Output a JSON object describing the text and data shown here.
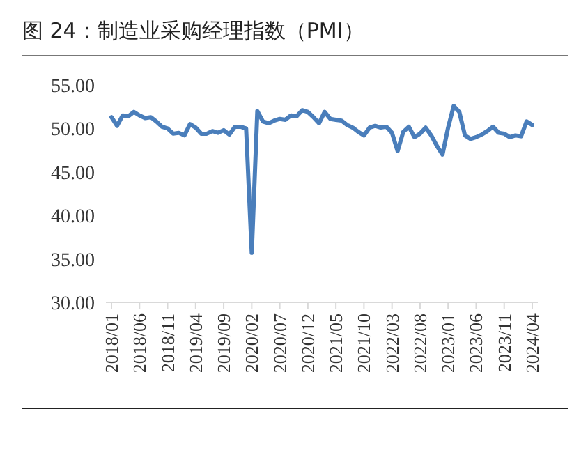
{
  "chart_data": {
    "type": "line",
    "title": "图 24：制造业采购经理指数（PMI）",
    "categories": [
      "2018/01",
      null,
      null,
      null,
      null,
      "2018/06",
      null,
      null,
      null,
      null,
      "2018/11",
      null,
      null,
      null,
      null,
      "2019/04",
      null,
      null,
      null,
      null,
      "2019/09",
      null,
      null,
      null,
      null,
      "2020/02",
      null,
      null,
      null,
      null,
      "2020/07",
      null,
      null,
      null,
      null,
      "2020/12",
      null,
      null,
      null,
      null,
      "2021/05",
      null,
      null,
      null,
      null,
      "2021/10",
      null,
      null,
      null,
      null,
      "2022/03",
      null,
      null,
      null,
      null,
      "2022/08",
      null,
      null,
      null,
      null,
      "2023/01",
      null,
      null,
      null,
      null,
      "2023/06",
      null,
      null,
      null,
      null,
      "2023/11",
      null,
      null,
      null,
      null,
      "2024/04"
    ],
    "series": [
      {
        "color": "#4a7ebb",
        "values": [
          51.3,
          50.3,
          51.5,
          51.4,
          51.9,
          51.5,
          51.2,
          51.3,
          50.8,
          50.2,
          50.0,
          49.4,
          49.5,
          49.2,
          50.5,
          50.1,
          49.4,
          49.4,
          49.7,
          49.5,
          49.8,
          49.3,
          50.2,
          50.2,
          50.0,
          35.7,
          52.0,
          50.8,
          50.6,
          50.9,
          51.1,
          51.0,
          51.5,
          51.4,
          52.1,
          51.9,
          51.3,
          50.6,
          51.9,
          51.1,
          51.0,
          50.9,
          50.4,
          50.1,
          49.6,
          49.2,
          50.1,
          50.3,
          50.1,
          50.2,
          49.5,
          47.4,
          49.6,
          50.2,
          49.0,
          49.4,
          50.1,
          49.2,
          48.0,
          47.0,
          50.1,
          52.6,
          51.9,
          49.2,
          48.8,
          49.0,
          49.3,
          49.7,
          50.2,
          49.5,
          49.4,
          49.0,
          49.2,
          49.1,
          50.8,
          50.4
        ]
      }
    ],
    "ylim": [
      30,
      55
    ],
    "yticks": [
      {
        "value": 30,
        "label": "30.00"
      },
      {
        "value": 35,
        "label": "35.00"
      },
      {
        "value": 40,
        "label": "40.00"
      },
      {
        "value": 45,
        "label": "45.00"
      },
      {
        "value": 50,
        "label": "50.00"
      },
      {
        "value": 55,
        "label": "55.00"
      }
    ],
    "grid": false,
    "marker": "none",
    "line_style": "solid"
  }
}
